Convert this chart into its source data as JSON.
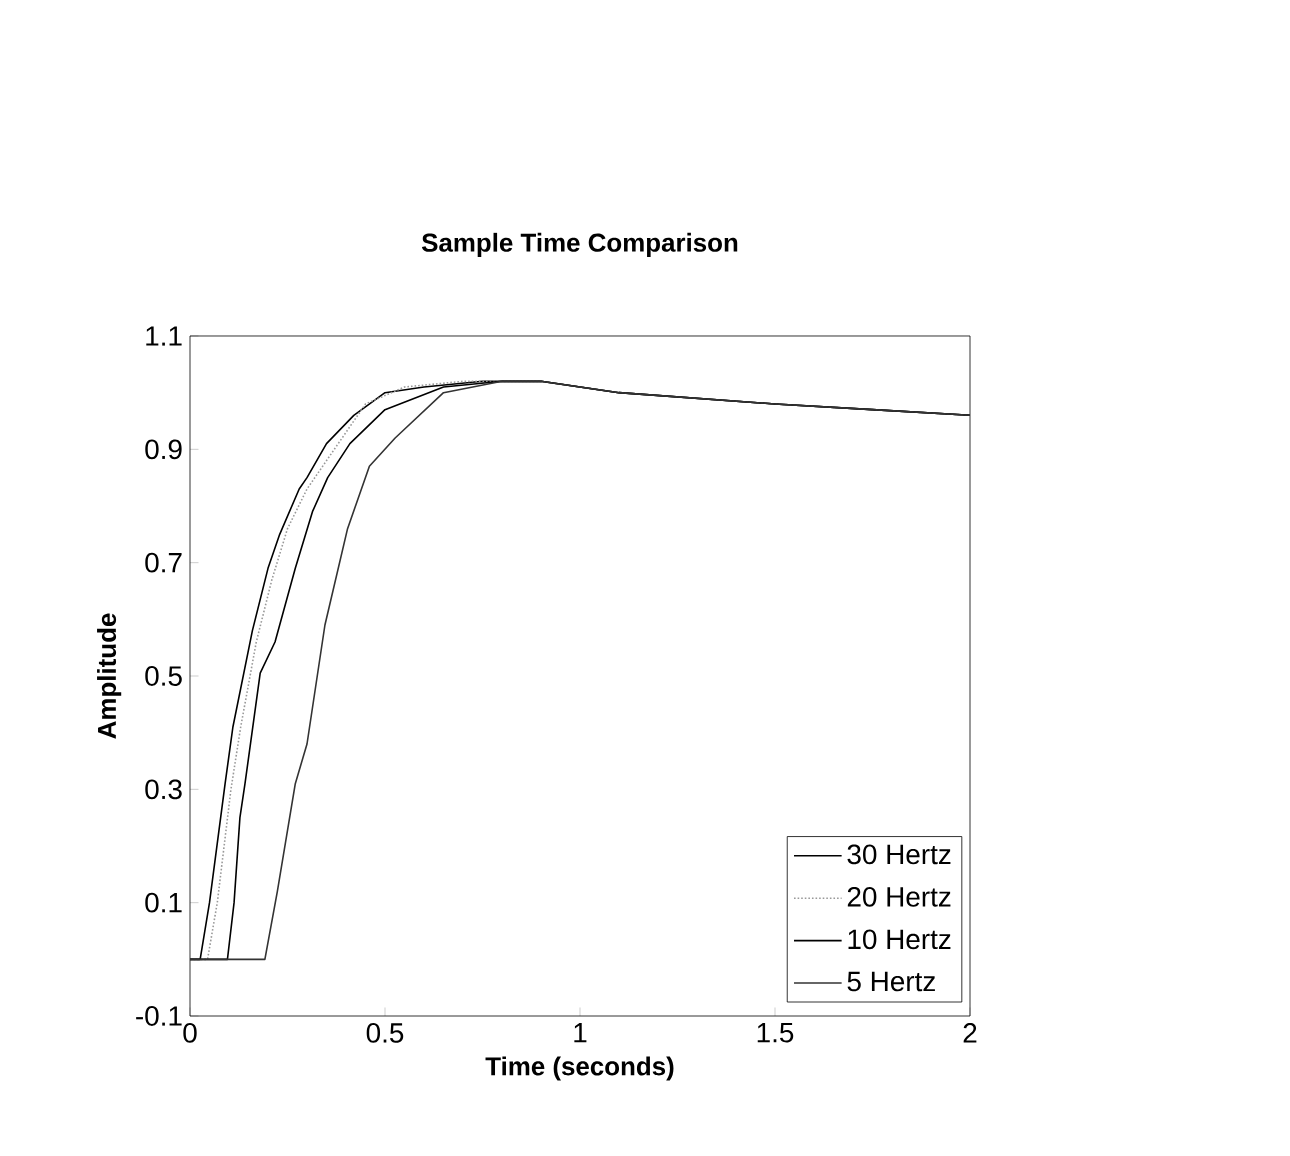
{
  "chart_data": {
    "type": "line",
    "title": "Sample Time Comparison",
    "xlabel": "Time (seconds)",
    "ylabel": "Amplitude",
    "xlim": [
      0,
      2
    ],
    "ylim": [
      -0.1,
      1.1
    ],
    "xticks": [
      0,
      0.5,
      1,
      1.5,
      2
    ],
    "yticks": [
      -0.1,
      0.1,
      0.3,
      0.5,
      0.7,
      0.9,
      1.1
    ],
    "legend": "bottom right",
    "marker": "none",
    "line_style": "solid",
    "grid": false,
    "series": [
      {
        "name": "30 Hertz",
        "color": "#000000",
        "x": [
          0,
          0.026,
          0.05,
          0.09,
          0.11,
          0.16,
          0.2,
          0.23,
          0.28,
          0.3,
          0.35,
          0.42,
          0.5,
          0.6,
          0.75,
          0.9,
          1.1,
          1.3,
          1.5,
          1.75,
          2
        ],
        "values": [
          0,
          0,
          0.1,
          0.31,
          0.41,
          0.58,
          0.69,
          0.75,
          0.83,
          0.85,
          0.91,
          0.96,
          1.0,
          1.01,
          1.02,
          1.02,
          1.0,
          0.99,
          0.98,
          0.97,
          0.96
        ]
      },
      {
        "name": "20 Hertz",
        "color": "#999999",
        "line_style": "dotted",
        "x": [
          0,
          0.045,
          0.07,
          0.105,
          0.13,
          0.17,
          0.21,
          0.25,
          0.3,
          0.37,
          0.45,
          0.55,
          0.7,
          0.9,
          1.1,
          1.3,
          1.5,
          1.75,
          2
        ],
        "values": [
          0,
          0,
          0.1,
          0.3,
          0.41,
          0.56,
          0.67,
          0.76,
          0.83,
          0.9,
          0.98,
          1.01,
          1.02,
          1.02,
          1.0,
          0.99,
          0.98,
          0.97,
          0.96
        ]
      },
      {
        "name": "10 Hertz",
        "color": "#000000",
        "x": [
          0,
          0.096,
          0.113,
          0.128,
          0.141,
          0.18,
          0.218,
          0.27,
          0.314,
          0.353,
          0.41,
          0.5,
          0.65,
          0.8,
          0.9,
          1.1,
          1.3,
          1.5,
          1.75,
          2
        ],
        "values": [
          0,
          0,
          0.1,
          0.25,
          0.31,
          0.505,
          0.56,
          0.69,
          0.79,
          0.85,
          0.91,
          0.97,
          1.01,
          1.02,
          1.02,
          1.0,
          0.99,
          0.98,
          0.97,
          0.96
        ]
      },
      {
        "name": "5 Hertz",
        "color": "#333333",
        "x": [
          0,
          0.192,
          0.224,
          0.27,
          0.3,
          0.346,
          0.404,
          0.46,
          0.526,
          0.65,
          0.8,
          0.9,
          1.1,
          1.3,
          1.5,
          1.75,
          2
        ],
        "values": [
          0,
          0,
          0.12,
          0.31,
          0.38,
          0.59,
          0.76,
          0.87,
          0.92,
          1.0,
          1.02,
          1.02,
          1.0,
          0.99,
          0.98,
          0.97,
          0.96
        ]
      }
    ]
  }
}
